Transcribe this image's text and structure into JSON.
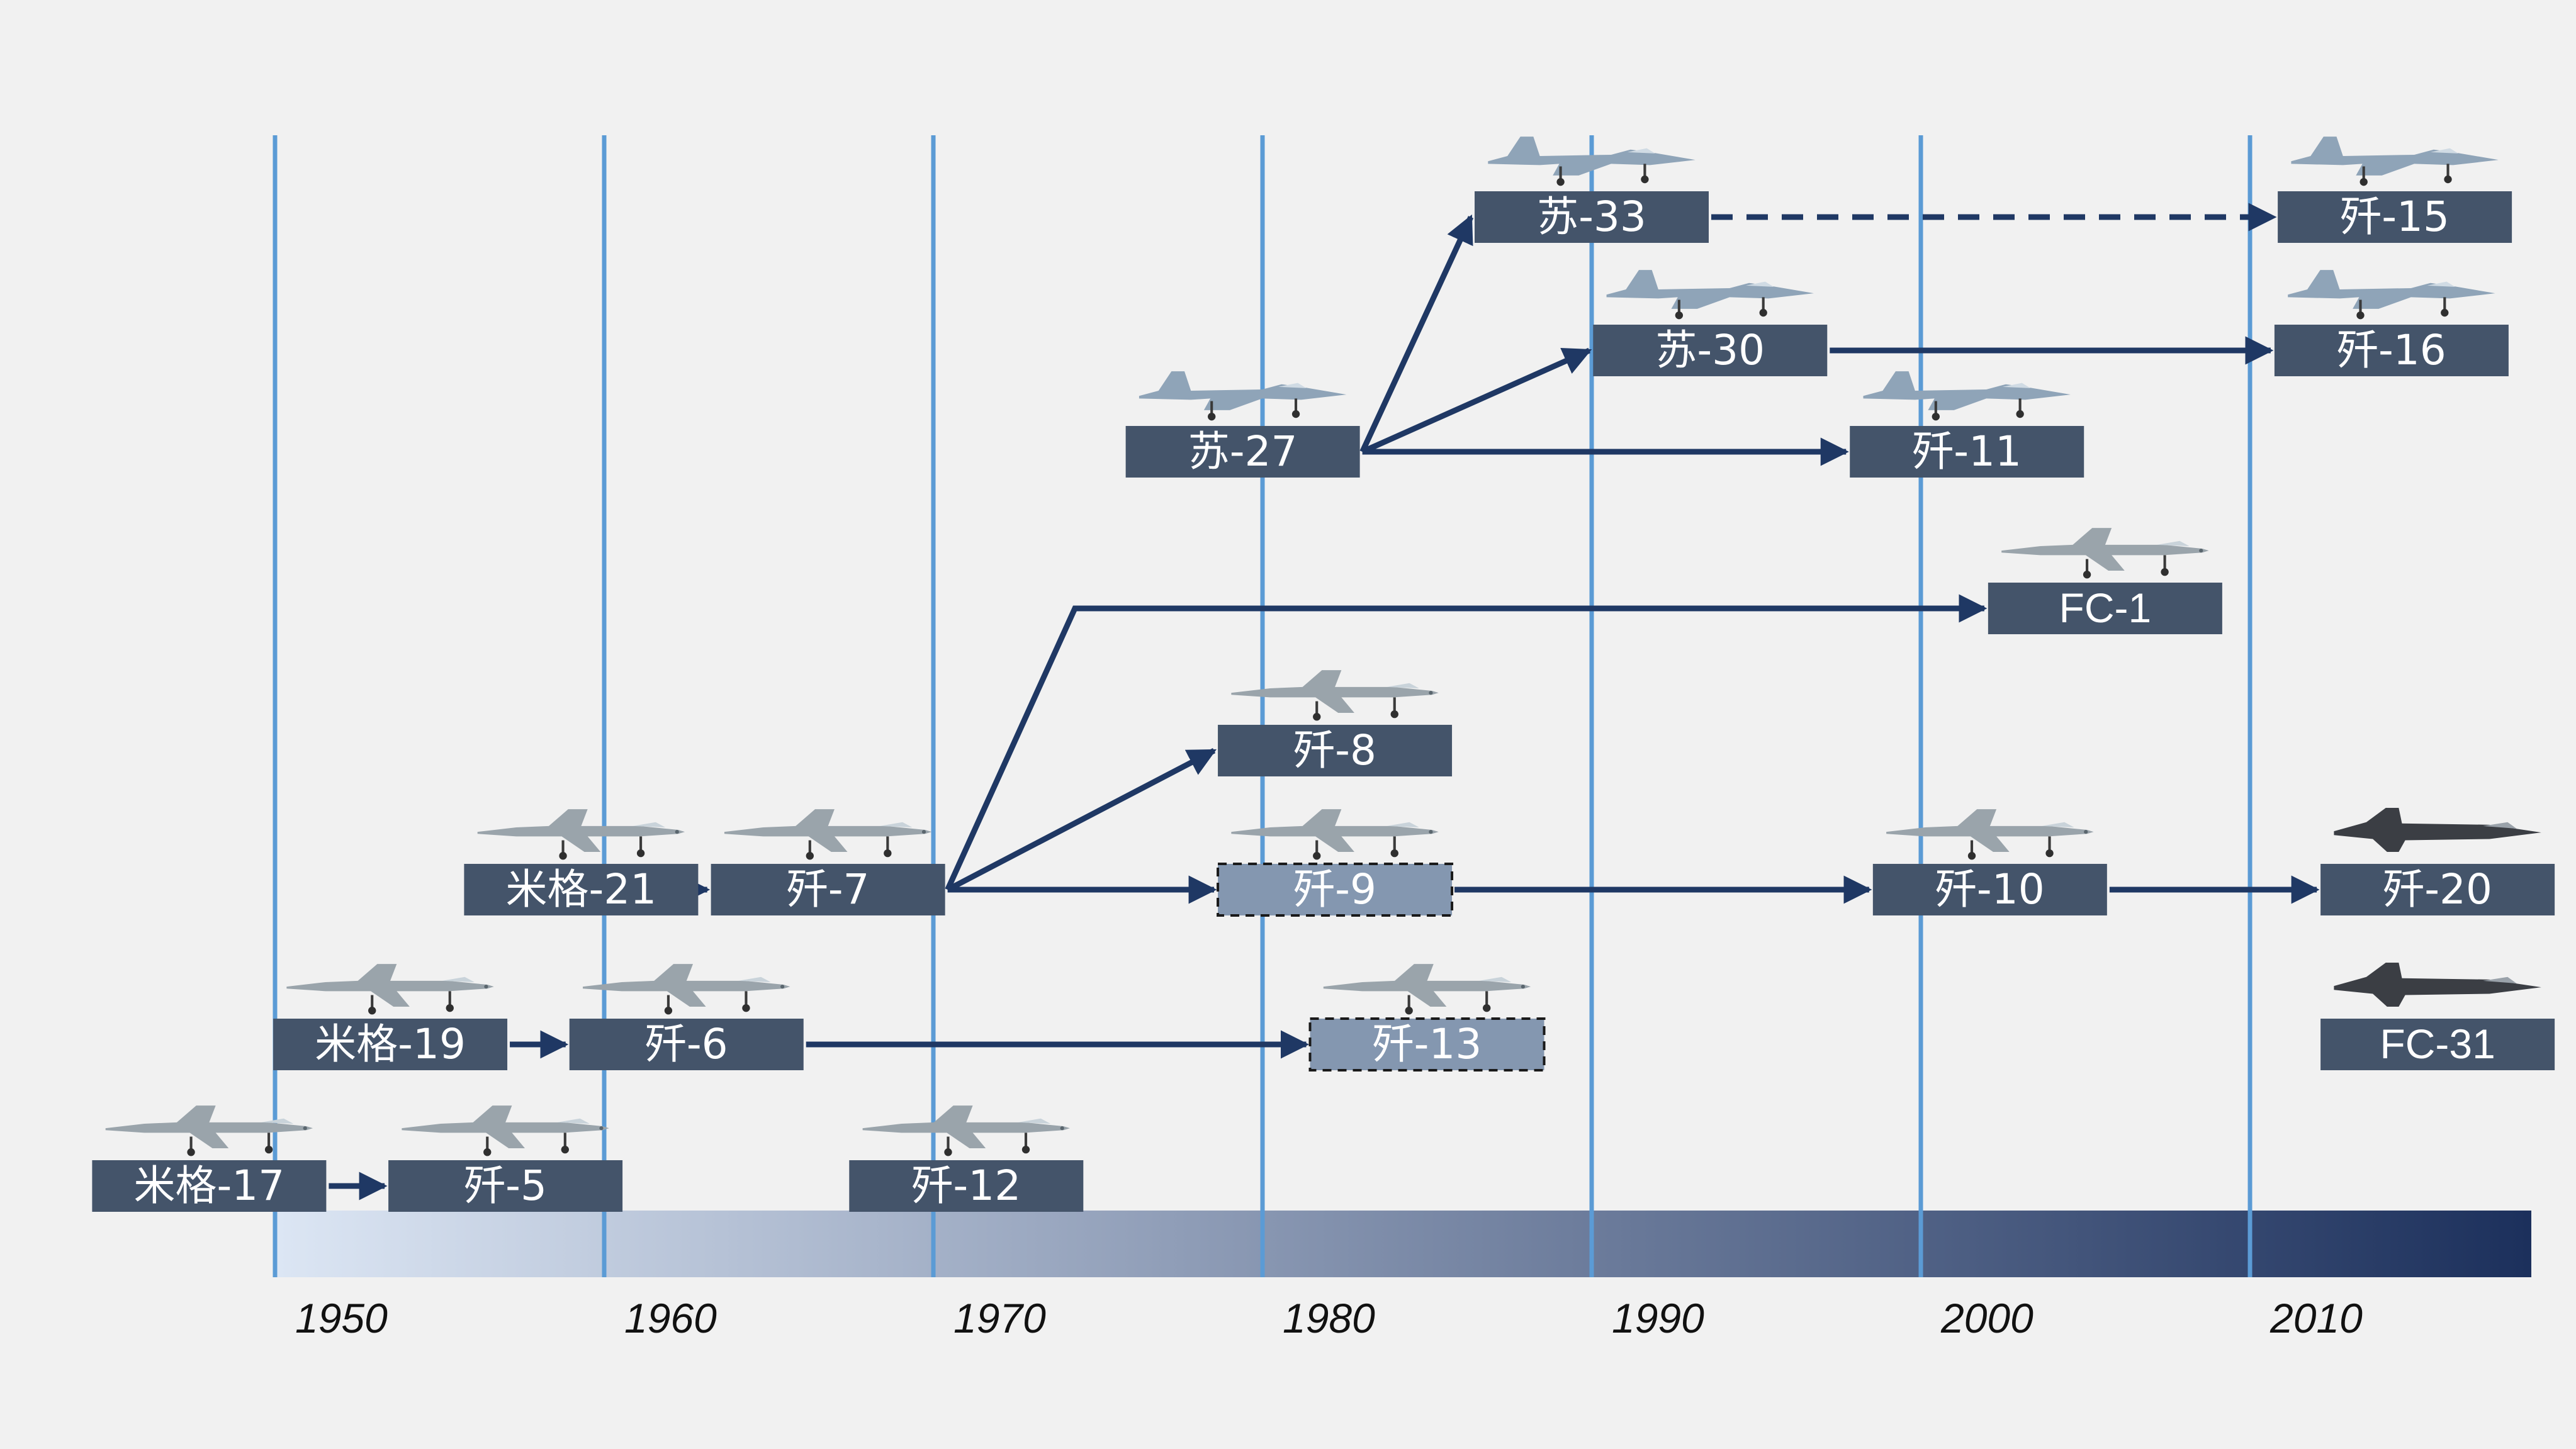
{
  "colors": {
    "background": "#f1f1f1",
    "decade_line": "#5b9bd5",
    "node_fill": "#44546a",
    "node_dashed_fill": "#8497b0",
    "arrow": "#1f3864",
    "timeline_start": "#dce6f4",
    "timeline_end": "#1c305c"
  },
  "timeline": {
    "decades": [
      "1950",
      "1960",
      "1970",
      "1980",
      "1990",
      "2000",
      "2010"
    ]
  },
  "nodes": [
    {
      "id": "mig17",
      "label": "米格-17",
      "decade": 1948.0,
      "row": 0,
      "icon": "jet-silhouette-icon"
    },
    {
      "id": "j5",
      "label": "歼-5",
      "decade": 1957.0,
      "row": 0,
      "icon": "jet-silhouette-icon"
    },
    {
      "id": "j12",
      "label": "歼-12",
      "decade": 1971.0,
      "row": 0,
      "icon": "jet-silhouette-icon"
    },
    {
      "id": "mig19",
      "label": "米格-19",
      "decade": 1953.5,
      "row": 1,
      "icon": "jet-silhouette-icon"
    },
    {
      "id": "j6",
      "label": "歼-6",
      "decade": 1962.5,
      "row": 1,
      "icon": "jet-silhouette-icon"
    },
    {
      "id": "j13",
      "label": "歼-13",
      "decade": 1985.0,
      "row": 1,
      "icon": "jet-silhouette-icon",
      "dashed": true
    },
    {
      "id": "fc31",
      "label": "FC-31",
      "decade": 2015.7,
      "row": 1,
      "icon": "stealth-jet-icon"
    },
    {
      "id": "mig21",
      "label": "米格-21",
      "decade": 1959.3,
      "row": 2,
      "icon": "jet-silhouette-icon"
    },
    {
      "id": "j7",
      "label": "歼-7",
      "decade": 1966.8,
      "row": 2,
      "icon": "jet-silhouette-icon"
    },
    {
      "id": "j9",
      "label": "歼-9",
      "decade": 1982.2,
      "row": 2,
      "icon": "jet-silhouette-icon",
      "dashed": true
    },
    {
      "id": "j10",
      "label": "歼-10",
      "decade": 2002.1,
      "row": 2,
      "icon": "jet-silhouette-icon"
    },
    {
      "id": "j20",
      "label": "歼-20",
      "decade": 2015.7,
      "row": 2,
      "icon": "stealth-jet-icon"
    },
    {
      "id": "j8",
      "label": "歼-8",
      "decade": 1982.2,
      "row": 3,
      "icon": "jet-silhouette-icon"
    },
    {
      "id": "fc1",
      "label": "FC-1",
      "decade": 2005.6,
      "row": 4,
      "icon": "jet-silhouette-icon"
    },
    {
      "id": "su27",
      "label": "苏-27",
      "decade": 1979.4,
      "row": 5,
      "icon": "flanker-jet-icon"
    },
    {
      "id": "j11",
      "label": "歼-11",
      "decade": 2001.4,
      "row": 5,
      "icon": "flanker-jet-icon"
    },
    {
      "id": "su30",
      "label": "苏-30",
      "decade": 1993.6,
      "row": 6,
      "icon": "flanker-jet-icon"
    },
    {
      "id": "j16",
      "label": "歼-16",
      "decade": 2014.3,
      "row": 6,
      "icon": "flanker-jet-icon"
    },
    {
      "id": "su33",
      "label": "苏-33",
      "decade": 1990.0,
      "row": 7,
      "icon": "flanker-jet-icon"
    },
    {
      "id": "j15",
      "label": "歼-15",
      "decade": 2014.4,
      "row": 7,
      "icon": "flanker-jet-icon"
    }
  ],
  "edges": [
    {
      "from": "mig17",
      "to": "j5"
    },
    {
      "from": "mig19",
      "to": "j6"
    },
    {
      "from": "j6",
      "to": "j13"
    },
    {
      "from": "mig21",
      "to": "j7"
    },
    {
      "from": "j7",
      "to": "j9"
    },
    {
      "from": "j9",
      "to": "j10"
    },
    {
      "from": "j10",
      "to": "j20"
    },
    {
      "from": "j7",
      "to": "j8"
    },
    {
      "from": "j7",
      "to": "fc1",
      "elbow": 1974.3
    },
    {
      "from": "su27",
      "to": "su33"
    },
    {
      "from": "su27",
      "to": "su30"
    },
    {
      "from": "su27",
      "to": "j11"
    },
    {
      "from": "su30",
      "to": "j16"
    },
    {
      "from": "su33",
      "to": "j15",
      "dashed": true
    }
  ]
}
